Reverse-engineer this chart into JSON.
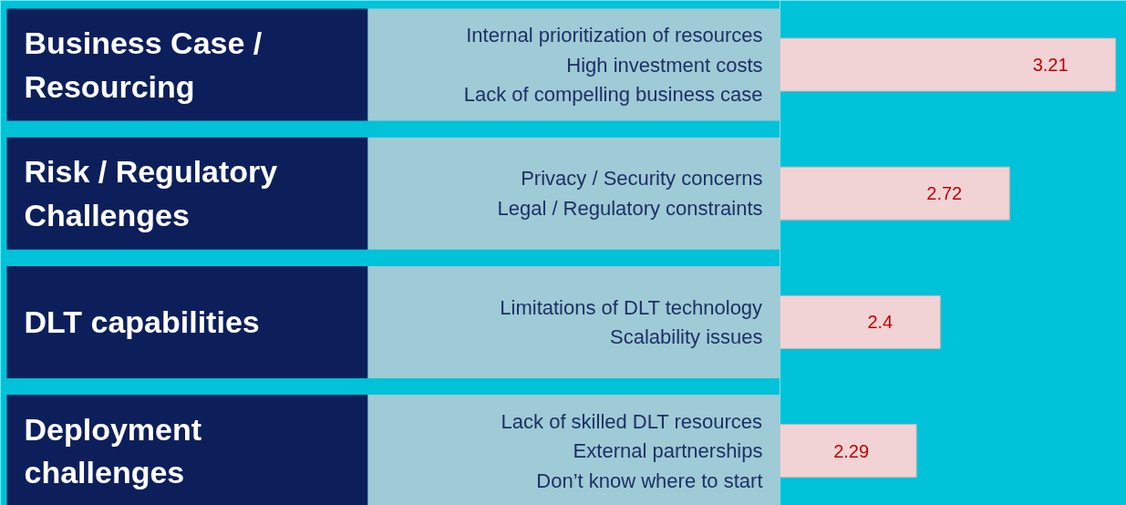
{
  "chart_data": {
    "type": "bar",
    "orientation": "horizontal",
    "categories": [
      "Business Case / Resourcing",
      "Risk / Regulatory Challenges",
      "DLT capabilities",
      "Deployment challenges"
    ],
    "values": [
      3.21,
      2.72,
      2.4,
      2.29
    ],
    "color": "#f2d3d5",
    "xlim": [
      1.66,
      3.26
    ],
    "data_labels": true,
    "tick_labels": false,
    "annotations": [
      "Internal prioritization of resources\nHigh investment costs\nLack of compelling business case",
      "Privacy / Security concerns\nLegal / Regulatory constraints",
      "Limitations of DLT technology\nScalability issues",
      "Lack of skilled DLT resources\nExternal partnerships\nDon’t know where to start"
    ]
  }
}
